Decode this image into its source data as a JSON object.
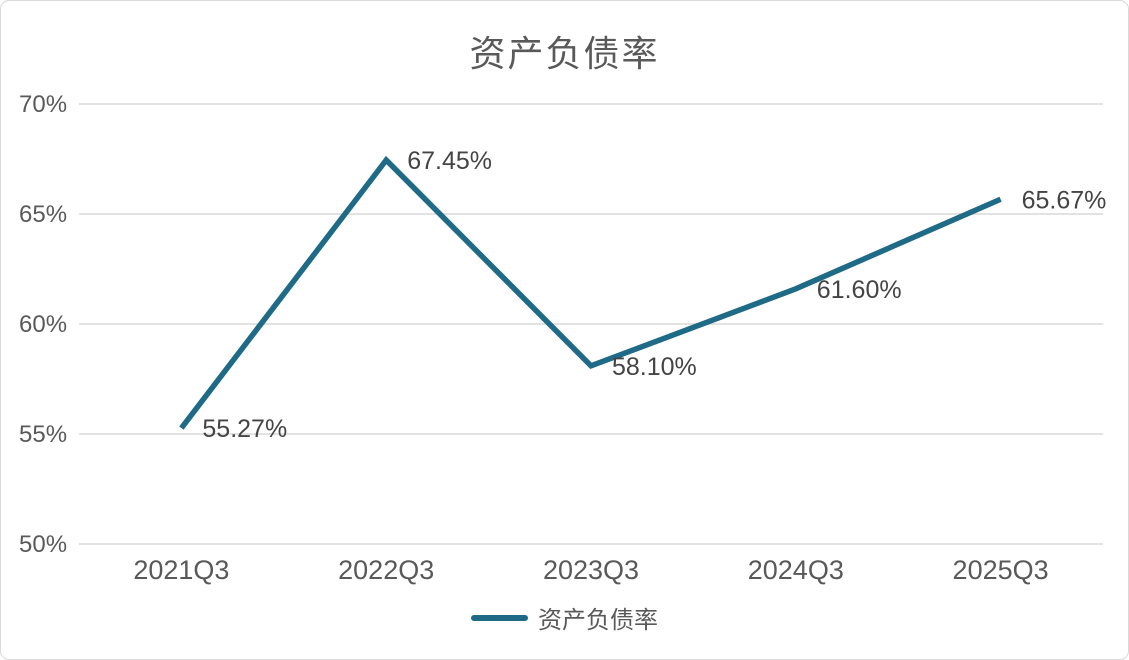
{
  "chart_data": {
    "type": "line",
    "title": "资产负债率",
    "categories": [
      "2021Q3",
      "2022Q3",
      "2023Q3",
      "2024Q3",
      "2025Q3"
    ],
    "series": [
      {
        "name": "资产负债率",
        "values": [
          55.27,
          67.45,
          58.1,
          61.6,
          65.67
        ],
        "labels": [
          "55.27%",
          "67.45%",
          "58.10%",
          "61.60%",
          "65.67%"
        ]
      }
    ],
    "y_ticks": [
      {
        "label": "70%",
        "value": 70
      },
      {
        "label": "65%",
        "value": 65
      },
      {
        "label": "60%",
        "value": 60
      },
      {
        "label": "55%",
        "value": 55
      },
      {
        "label": "50%",
        "value": 50
      }
    ],
    "ylim": [
      50,
      70
    ],
    "xlabel": "",
    "ylabel": "",
    "grid": "horizontal",
    "legend_position": "bottom",
    "legend_label": "资产负债率",
    "colors": {
      "line": "#1f6b87",
      "grid": "#d9d9d9",
      "axis_text": "#595959",
      "data_label_text": "#444444",
      "title_text": "#595959"
    }
  }
}
